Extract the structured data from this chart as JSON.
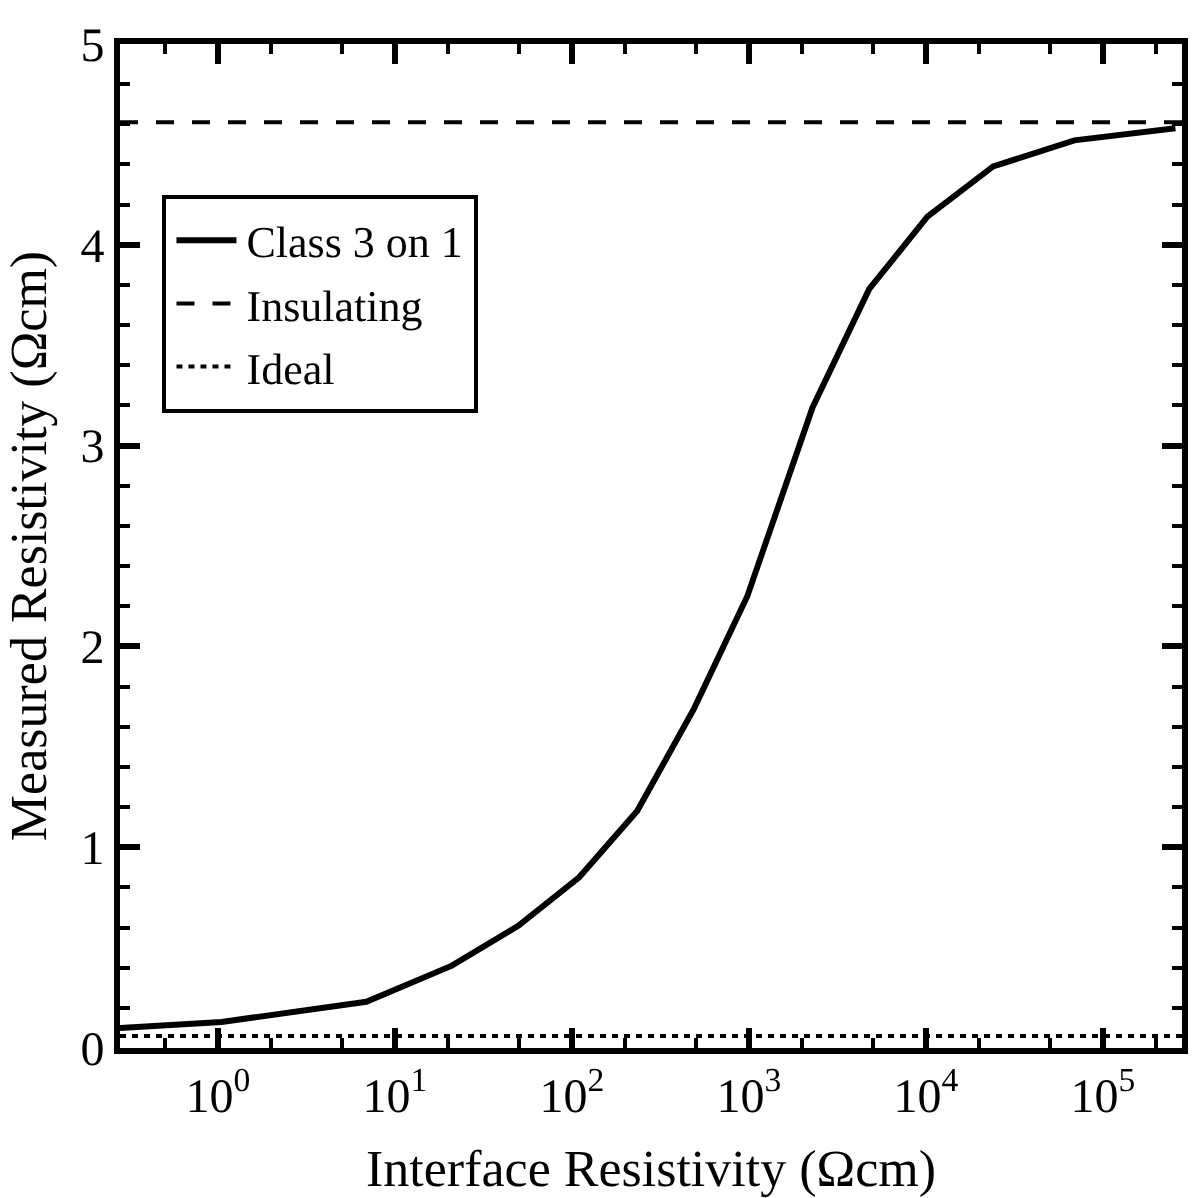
{
  "chart_data": {
    "type": "line",
    "xlabel": "Interface Resistivity (Ωcm)",
    "ylabel": "Measured Resistivity (Ωcm)",
    "log": "x",
    "xlim": [
      0.28,
      280000
    ],
    "ylim": [
      0,
      5
    ],
    "xticks": [
      {
        "value": 1,
        "label": "10$^{0}$"
      },
      {
        "value": 10,
        "label": "10$^{1}$"
      },
      {
        "value": 100,
        "label": "10$^{2}$"
      },
      {
        "value": 1000,
        "label": "10$^{3}$"
      },
      {
        "value": 10000,
        "label": "10$^{4}$"
      },
      {
        "value": 100000,
        "label": "10$^{5}$"
      }
    ],
    "yticks": [
      0,
      1,
      2,
      3,
      4,
      5
    ],
    "legend": "top left",
    "marker": "none",
    "series": [
      {
        "name": "Class 3 on 1",
        "color": "#000000",
        "line_style": "solid",
        "x": [
          0.28,
          1.05,
          6.9,
          21,
          50,
          110,
          234,
          490,
          980,
          2290,
          4790,
          10200,
          24000,
          69000,
          257000
        ],
        "values": [
          0.1,
          0.13,
          0.23,
          0.41,
          0.61,
          0.85,
          1.18,
          1.69,
          2.25,
          3.19,
          3.78,
          4.14,
          4.39,
          4.52,
          4.58
        ]
      },
      {
        "name": "Insulating",
        "color": "#000000",
        "line_style": "dashed",
        "x": [
          0.28,
          280000
        ],
        "values": [
          4.61,
          4.61
        ]
      },
      {
        "name": "Ideal",
        "color": "#000000",
        "line_style": "dotted",
        "x": [
          0.28,
          280000
        ],
        "values": [
          0.06,
          0.06
        ]
      }
    ]
  }
}
